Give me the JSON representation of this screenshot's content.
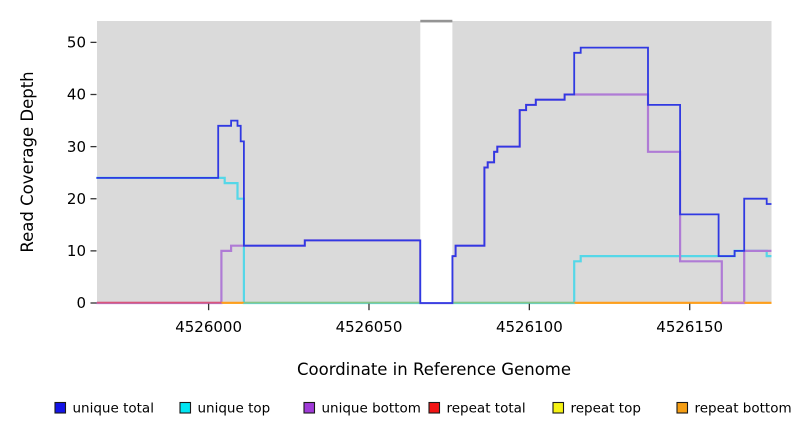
{
  "chart_data": {
    "type": "line-step",
    "title": "",
    "xlabel": "Coordinate in Reference Genome",
    "ylabel": "Read Coverage Depth",
    "xlim": [
      4525965.2,
      4526175.5
    ],
    "ylim": [
      0,
      54.1
    ],
    "x_ticks": [
      4526000,
      4526050,
      4526100,
      4526150
    ],
    "y_ticks": [
      0,
      10,
      20,
      30,
      40,
      50
    ],
    "grid": false,
    "legend_position": "bottom",
    "panel_color": "#dadada",
    "masked_region": {
      "from": 4526066,
      "to": 4526076,
      "fill": "#ffffff",
      "cap_color": "#949494"
    },
    "series": [
      {
        "name": "unique total",
        "line_color": "#3039e2",
        "legend_color": "#1414e8",
        "points": [
          [
            4525965,
            24
          ],
          [
            4526003,
            34
          ],
          [
            4526007,
            35
          ],
          [
            4526009,
            34
          ],
          [
            4526010,
            31
          ],
          [
            4526011,
            11
          ],
          [
            4526030,
            12
          ],
          [
            4526066,
            0
          ],
          [
            4526076,
            9
          ],
          [
            4526077,
            11
          ],
          [
            4526086,
            26
          ],
          [
            4526087,
            27
          ],
          [
            4526089,
            29
          ],
          [
            4526090,
            30
          ],
          [
            4526097,
            37
          ],
          [
            4526099,
            38
          ],
          [
            4526102,
            39
          ],
          [
            4526111,
            40
          ],
          [
            4526114,
            48
          ],
          [
            4526116,
            49
          ],
          [
            4526137,
            38
          ],
          [
            4526147,
            17
          ],
          [
            4526159,
            9
          ],
          [
            4526164,
            10
          ],
          [
            4526167,
            20
          ],
          [
            4526174,
            19
          ]
        ]
      },
      {
        "name": "unique top",
        "line_color": "#55d7e8",
        "legend_color": "#00e5f2",
        "points": [
          [
            4525965,
            24
          ],
          [
            4526005,
            23
          ],
          [
            4526009,
            20
          ],
          [
            4526011,
            0
          ],
          [
            4526114,
            8
          ],
          [
            4526116,
            9
          ],
          [
            4526164,
            10
          ],
          [
            4526174,
            9
          ]
        ]
      },
      {
        "name": "unique bottom",
        "line_color": "#af7bd5",
        "legend_color": "#a03bd8",
        "points": [
          [
            4525965,
            0
          ],
          [
            4526004,
            10
          ],
          [
            4526007,
            11
          ],
          [
            4526030,
            12
          ],
          [
            4526066,
            0
          ],
          [
            4526076,
            9
          ],
          [
            4526077,
            11
          ],
          [
            4526086,
            26
          ],
          [
            4526087,
            27
          ],
          [
            4526089,
            29
          ],
          [
            4526090,
            30
          ],
          [
            4526097,
            37
          ],
          [
            4526099,
            38
          ],
          [
            4526102,
            39
          ],
          [
            4526111,
            40
          ],
          [
            4526137,
            29
          ],
          [
            4526147,
            8
          ],
          [
            4526160,
            0
          ],
          [
            4526167,
            10
          ]
        ]
      },
      {
        "name": "repeat total",
        "line_color": "#e02020",
        "legend_color": "#f21414",
        "points": [
          [
            4525965,
            0
          ]
        ]
      },
      {
        "name": "repeat top",
        "line_color": "#f0ec30",
        "legend_color": "#f5f214",
        "points": [
          [
            4525965,
            0
          ]
        ]
      },
      {
        "name": "repeat bottom",
        "line_color": "#ff9e1c",
        "legend_color": "#f59e14",
        "points": [
          [
            4525965,
            0
          ]
        ]
      }
    ],
    "zero_line_segments": [
      {
        "from": 4525965.2,
        "to": 4526004,
        "color": "#d9577b"
      },
      {
        "from": 4526004,
        "to": 4526011,
        "color": "#ff9e1c"
      },
      {
        "from": 4526011,
        "to": 4526114,
        "color": "#87c687"
      },
      {
        "from": 4526114,
        "to": 4526175.5,
        "color": "#ff9e1c"
      },
      {
        "from": 4526160,
        "to": 4526167,
        "color": "#c77ece"
      }
    ]
  }
}
